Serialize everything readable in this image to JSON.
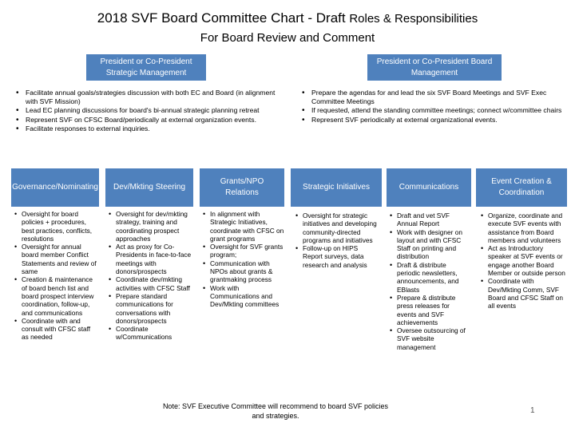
{
  "header": {
    "title_main": "2018 SVF Board Committee Chart - Draft",
    "title_small": "Roles & Responsibilities",
    "subtitle": "For Board Review and Comment"
  },
  "top_roles": [
    {
      "label": "President or Co-President Strategic Management",
      "bullets": [
        "Facilitate annual goals/strategies discussion with both EC and Board (in alignment with SVF Mission)",
        "Lead EC planning discussions for board's bi-annual strategic planning retreat",
        "Represent SVF on CFSC Board/periodically at external organization events.",
        "Facilitate responses to external inquiries."
      ]
    },
    {
      "label": "President or Co-President Board Management",
      "bullets": [
        "Prepare the agendas for and lead the six SVF Board Meetings and SVF Exec Committee Meetings",
        "If requested, attend the standing committee meetings; connect w/committee chairs",
        "Represent SVF periodically at external organizational events."
      ]
    }
  ],
  "committees": [
    {
      "label": "Governance/Nominating",
      "bullets": [
        "Oversight for board policies + procedures, best practices, conflicts, resolutions",
        "Oversight for annual board member Conflict Statements and review of same",
        "Creation & maintenance of board bench list and board prospect interview coordination, follow-up, and communications",
        "Coordinate with and consult with CFSC staff as needed"
      ]
    },
    {
      "label": "Dev/Mkting Steering",
      "bullets": [
        "Oversight for dev/mkting strategy, training and coordinating prospect approaches",
        "Act as proxy for Co-Presidents in face-to-face meetings with donors/prospects",
        "Coordinate dev/mkting activities with CFSC Staff",
        "Prepare standard communications for conversations with donors/prospects",
        "Coordinate w/Communications"
      ]
    },
    {
      "label": "Grants/NPO Relations",
      "bullets": [
        "In alignment with Strategic Initiatives, coordinate with CFSC on grant programs",
        "Oversight for SVF grants program;",
        "Communication with NPOs about grants & grantmaking process",
        "Work with Communications and Dev/Mkting committees"
      ]
    },
    {
      "label": "Strategic Initiatives",
      "bullets": [
        "Oversight for strategic initiatives and developing community-directed programs and initiatives",
        "Follow-up on HIPS Report surveys, data research and analysis"
      ]
    },
    {
      "label": "Communications",
      "bullets": [
        "Draft and vet SVF Annual Report",
        "Work with designer on layout and with CFSC Staff on printing and distribution",
        "Draft & distribute periodic newsletters, announcements, and EBlasts",
        "Prepare & distribute press releases for events and SVF achievements",
        "Oversee outsourcing of SVF website management"
      ]
    },
    {
      "label": "Event Creation & Coordination",
      "bullets": [
        "Organize, coordinate and execute SVF events with assistance from Board members and volunteers",
        "Act as Introductory speaker at SVF events or engage another Board Member or outside person",
        "Coordinate with Dev/Mkting Comm, SVF Board and CFSC Staff on all events"
      ]
    }
  ],
  "footer": {
    "note": "Note: SVF Executive Committee will recommend to board SVF policies and strategies.",
    "page_number": "1"
  },
  "colors": {
    "box_fill": "#4f81bd",
    "box_text": "#ffffff"
  }
}
